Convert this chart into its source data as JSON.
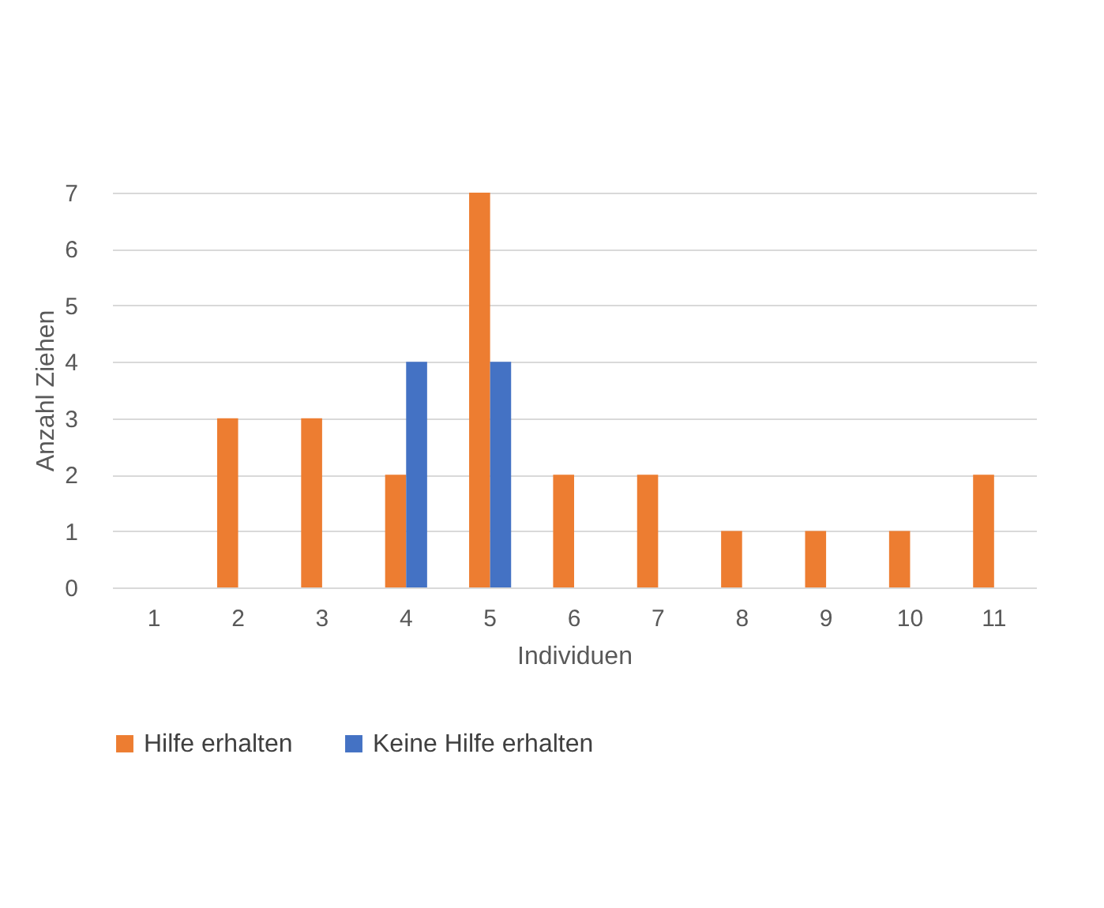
{
  "chart_data": {
    "type": "bar",
    "categories": [
      "1",
      "2",
      "3",
      "4",
      "5",
      "6",
      "7",
      "8",
      "9",
      "10",
      "11"
    ],
    "series": [
      {
        "name": "Hilfe erhalten",
        "color": "#ed7d31",
        "values": [
          0,
          3,
          3,
          2,
          7,
          2,
          2,
          1,
          1,
          1,
          2
        ]
      },
      {
        "name": "Keine Hilfe erhalten",
        "color": "#4472c4",
        "values": [
          0,
          0,
          0,
          4,
          4,
          0,
          0,
          0,
          0,
          0,
          0
        ]
      }
    ],
    "xlabel": "Individuen",
    "ylabel": "Anzahl Ziehen",
    "ylim": [
      0,
      7
    ],
    "yticks": [
      0,
      1,
      2,
      3,
      4,
      5,
      6,
      7
    ],
    "grid": "y",
    "legend": "bottom"
  }
}
